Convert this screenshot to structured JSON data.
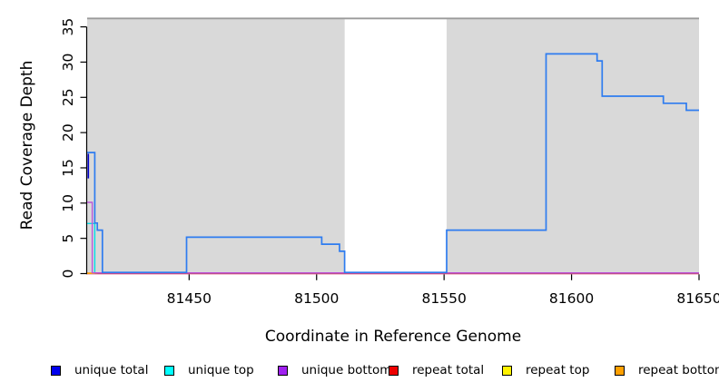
{
  "chart_data": {
    "type": "line",
    "subtype": "step-coverage",
    "title": "",
    "xlabel": "Coordinate in Reference Genome",
    "ylabel": "Read Coverage Depth",
    "xlim": [
      81410,
      81650
    ],
    "ylim": [
      0,
      36.4
    ],
    "x_ticks": [
      "81450",
      "81500",
      "81550",
      "81600",
      "81650"
    ],
    "x_tick_values": [
      81450,
      81500,
      81550,
      81600,
      81650
    ],
    "y_ticks": [
      "0",
      "5",
      "10",
      "15",
      "20",
      "25",
      "30",
      "35"
    ],
    "y_tick_values": [
      0,
      5,
      10,
      15,
      20,
      25,
      30,
      35
    ],
    "plot_background": "#d9d9d9",
    "masked_region": [
      81511,
      81551
    ],
    "grid": false,
    "legend_position": "bottom",
    "series": [
      {
        "name": "repeat total",
        "color": "#e02a52",
        "steps": [
          [
            81410,
            0
          ],
          [
            81650,
            0
          ]
        ]
      },
      {
        "name": "repeat top",
        "color": "#ffe400",
        "steps": [
          [
            81410,
            0
          ],
          [
            81413,
            0
          ]
        ]
      },
      {
        "name": "repeat bottom",
        "color": "#ff9500",
        "steps": [
          [
            81410,
            0
          ],
          [
            81414,
            0
          ]
        ]
      },
      {
        "name": "unique top",
        "color": "#00dde6",
        "steps": [
          [
            81410,
            7
          ],
          [
            81413,
            0
          ],
          [
            81650,
            0
          ]
        ]
      },
      {
        "name": "unique bottom",
        "color": "#bb55d8",
        "steps": [
          [
            81410,
            10
          ],
          [
            81412,
            0
          ],
          [
            81650,
            0
          ]
        ]
      },
      {
        "name": "unique total",
        "color": "#2e7cf0",
        "steps": [
          [
            81410,
            17
          ],
          [
            81413,
            7
          ],
          [
            81414,
            6
          ],
          [
            81416,
            0
          ],
          [
            81449,
            5
          ],
          [
            81502,
            4
          ],
          [
            81509,
            3
          ],
          [
            81511,
            0
          ],
          [
            81551,
            6
          ],
          [
            81590,
            31
          ],
          [
            81610,
            30
          ],
          [
            81612,
            25
          ],
          [
            81636,
            24
          ],
          [
            81645,
            23
          ],
          [
            81650,
            23
          ]
        ]
      }
    ]
  },
  "legend": [
    {
      "label": "unique total",
      "color": "#0000ee"
    },
    {
      "label": "unique top",
      "color": "#00ffff"
    },
    {
      "label": "unique bottom",
      "color": "#a020f0"
    },
    {
      "label": "repeat total",
      "color": "#ee0000"
    },
    {
      "label": "repeat top",
      "color": "#fff200"
    },
    {
      "label": "repeat bottom",
      "color": "#ffa000"
    }
  ]
}
